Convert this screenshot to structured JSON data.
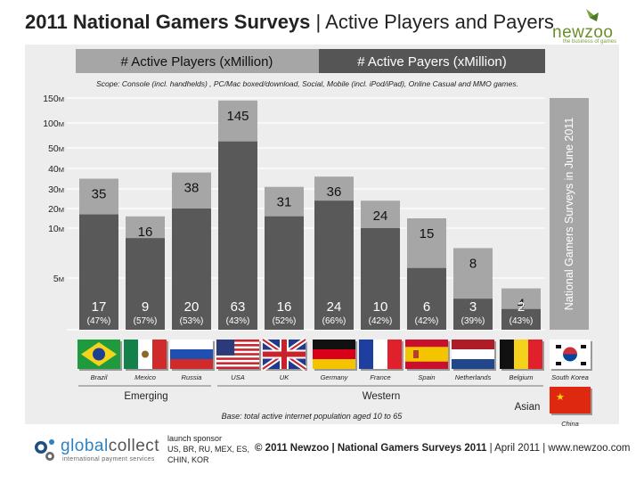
{
  "header": {
    "title_bold": "2011 National Gamers Surveys",
    "title_rest": " | Active Players and Payers",
    "brand": "newzoo",
    "brand_tagline": "the business of games"
  },
  "legend": {
    "players": "# Active Players (xMillion)",
    "payers": "# Active Payers (xMillion)"
  },
  "scope": "Scope: Console (incl. handhelds) , PC/Mac boxed/download, Social, Mobile (incl. iPod/iPad), Online Casual and MMO games.",
  "chart_data": {
    "type": "bar",
    "title": "2011 National Gamers Surveys | Active Players and Payers",
    "categories": [
      "Brazil",
      "Mexico",
      "Russia",
      "USA",
      "UK",
      "Germany",
      "France",
      "Spain",
      "Netherlands",
      "Belgium"
    ],
    "series": [
      {
        "name": "# Active Players (xMillion)",
        "values": [
          35,
          16,
          38,
          145,
          31,
          36,
          24,
          15,
          8,
          4
        ]
      },
      {
        "name": "# Active Payers (xMillion)",
        "values": [
          17,
          9,
          20,
          63,
          16,
          24,
          10,
          6,
          3,
          2
        ]
      }
    ],
    "payer_shares": [
      "(47%)",
      "(57%)",
      "(53%)",
      "(43%)",
      "(52%)",
      "(66%)",
      "(42%)",
      "(42%)",
      "(39%)",
      "(43%)"
    ],
    "y_ticks": [
      "150M",
      "100M",
      "50M",
      "40M",
      "30M",
      "20M",
      "10M",
      "5M"
    ],
    "y_tick_values": [
      150,
      100,
      50,
      40,
      30,
      20,
      10,
      5
    ],
    "axis_note": "non-linear scale",
    "regions": [
      {
        "name": "Emerging",
        "members": [
          "Brazil",
          "Mexico",
          "Russia"
        ]
      },
      {
        "name": "Western",
        "members": [
          "USA",
          "UK",
          "Germany",
          "France",
          "Spain",
          "Netherlands",
          "Belgium"
        ]
      },
      {
        "name": "Asian",
        "members": [
          "South Korea",
          "China"
        ]
      }
    ],
    "placeholder_label": "National Gamers Surveys in June 2011",
    "extra_countries": [
      "South Korea",
      "China"
    ]
  },
  "base_note": "Base: total active internet population aged 10 to 65",
  "footer": {
    "sponsor_brand_a": "global",
    "sponsor_brand_b": "collect",
    "sponsor_tagline": "international payment services",
    "sponsor_lines": [
      "launch sponsor",
      "US, BR, RU, MEX, ES,",
      "CHIN, KOR"
    ],
    "copyright_bold": "© 2011 Newzoo | National Gamers Surveys 2011",
    "copyright_rest": "| April 2011 | www.newzoo.com"
  },
  "colors": {
    "players_bar": "#a6a6a6",
    "payers_bar": "#595959",
    "panel_bg": "#ededed",
    "legend_payers_bg": "#555555",
    "legend_players_bg": "#a6a6a6",
    "brand_green": "#6a8f2a"
  }
}
